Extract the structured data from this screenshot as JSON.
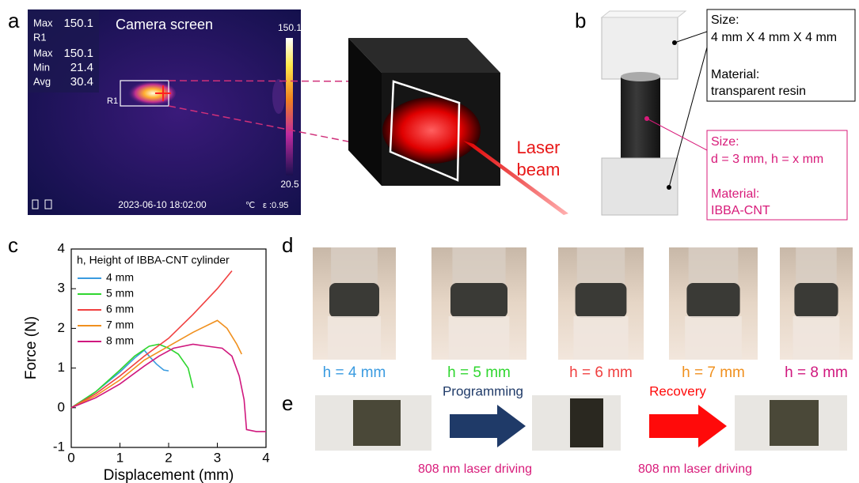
{
  "panel_labels": [
    "a",
    "b",
    "c",
    "d",
    "e"
  ],
  "camera": {
    "title": "Camera screen",
    "top_stat": [
      "Max",
      "150.1"
    ],
    "roi_name": "R1",
    "stats": [
      [
        "Max",
        "150.1"
      ],
      [
        "Min",
        "21.4"
      ],
      [
        "Avg",
        "30.4"
      ]
    ],
    "scale_max": "150.1",
    "scale_min": "20.5",
    "roi_label": "R1",
    "timestamp": "2023-06-10 18:02:00",
    "unit": "℃",
    "emissivity": "ε :0.95"
  },
  "laser_label": [
    "Laser",
    "beam"
  ],
  "specimen": {
    "resin": [
      "Size:",
      "4 mm X 4 mm X 4 mm",
      "Material:",
      "transparent resin"
    ],
    "cnt": [
      "Size:",
      "d = 3 mm, h = x mm",
      "Material:",
      "IBBA-CNT"
    ]
  },
  "photos": {
    "labels": [
      "h = 4 mm",
      "h = 5 mm",
      "h = 6 mm",
      "h = 7 mm",
      "h = 8 mm"
    ]
  },
  "recovery": {
    "steps": [
      "Programming",
      "Recovery"
    ],
    "driver": [
      "808 nm laser driving",
      "808 nm laser driving"
    ]
  },
  "chart_data": {
    "type": "line",
    "xlabel": "Displacement (mm)",
    "ylabel": "Force (N)",
    "legend_title": "h, Height of IBBA-CNT cylinder",
    "xlim": [
      0,
      4
    ],
    "ylim": [
      -1,
      4
    ],
    "xticks": [
      0,
      1,
      2,
      3,
      4
    ],
    "yticks": [
      -1,
      0,
      1,
      2,
      3,
      4
    ],
    "series": [
      {
        "name": "4 mm",
        "color": "#3a9be0",
        "x": [
          0,
          0.5,
          1,
          1.3,
          1.5,
          1.6,
          1.75,
          1.9,
          2
        ],
        "values": [
          0,
          0.4,
          0.9,
          1.25,
          1.45,
          1.3,
          1.1,
          0.95,
          0.93
        ]
      },
      {
        "name": "5 mm",
        "color": "#2fd62f",
        "x": [
          0,
          0.5,
          1,
          1.3,
          1.6,
          1.8,
          2,
          2.2,
          2.4,
          2.5
        ],
        "values": [
          0,
          0.4,
          0.95,
          1.3,
          1.55,
          1.6,
          1.5,
          1.35,
          1.0,
          0.5
        ]
      },
      {
        "name": "6 mm",
        "color": "#f04040",
        "x": [
          0,
          0.5,
          1,
          1.5,
          2,
          2.5,
          3,
          3.3
        ],
        "values": [
          0,
          0.35,
          0.8,
          1.3,
          1.75,
          2.35,
          3.0,
          3.45
        ]
      },
      {
        "name": "7 mm",
        "color": "#f0901e",
        "x": [
          0,
          0.5,
          1,
          1.5,
          2,
          2.5,
          3,
          3.2,
          3.4,
          3.5
        ],
        "values": [
          0,
          0.3,
          0.7,
          1.2,
          1.55,
          1.9,
          2.2,
          2.0,
          1.6,
          1.35
        ]
      },
      {
        "name": "8 mm",
        "color": "#d0187e",
        "x": [
          0,
          0.5,
          1,
          1.5,
          1.8,
          2.1,
          2.5,
          2.8,
          3.1,
          3.3,
          3.45,
          3.55,
          3.6,
          3.8,
          4
        ],
        "values": [
          0,
          0.25,
          0.6,
          1.05,
          1.3,
          1.5,
          1.6,
          1.55,
          1.5,
          1.3,
          0.8,
          0.2,
          -0.55,
          -0.6,
          -0.6
        ]
      }
    ]
  }
}
